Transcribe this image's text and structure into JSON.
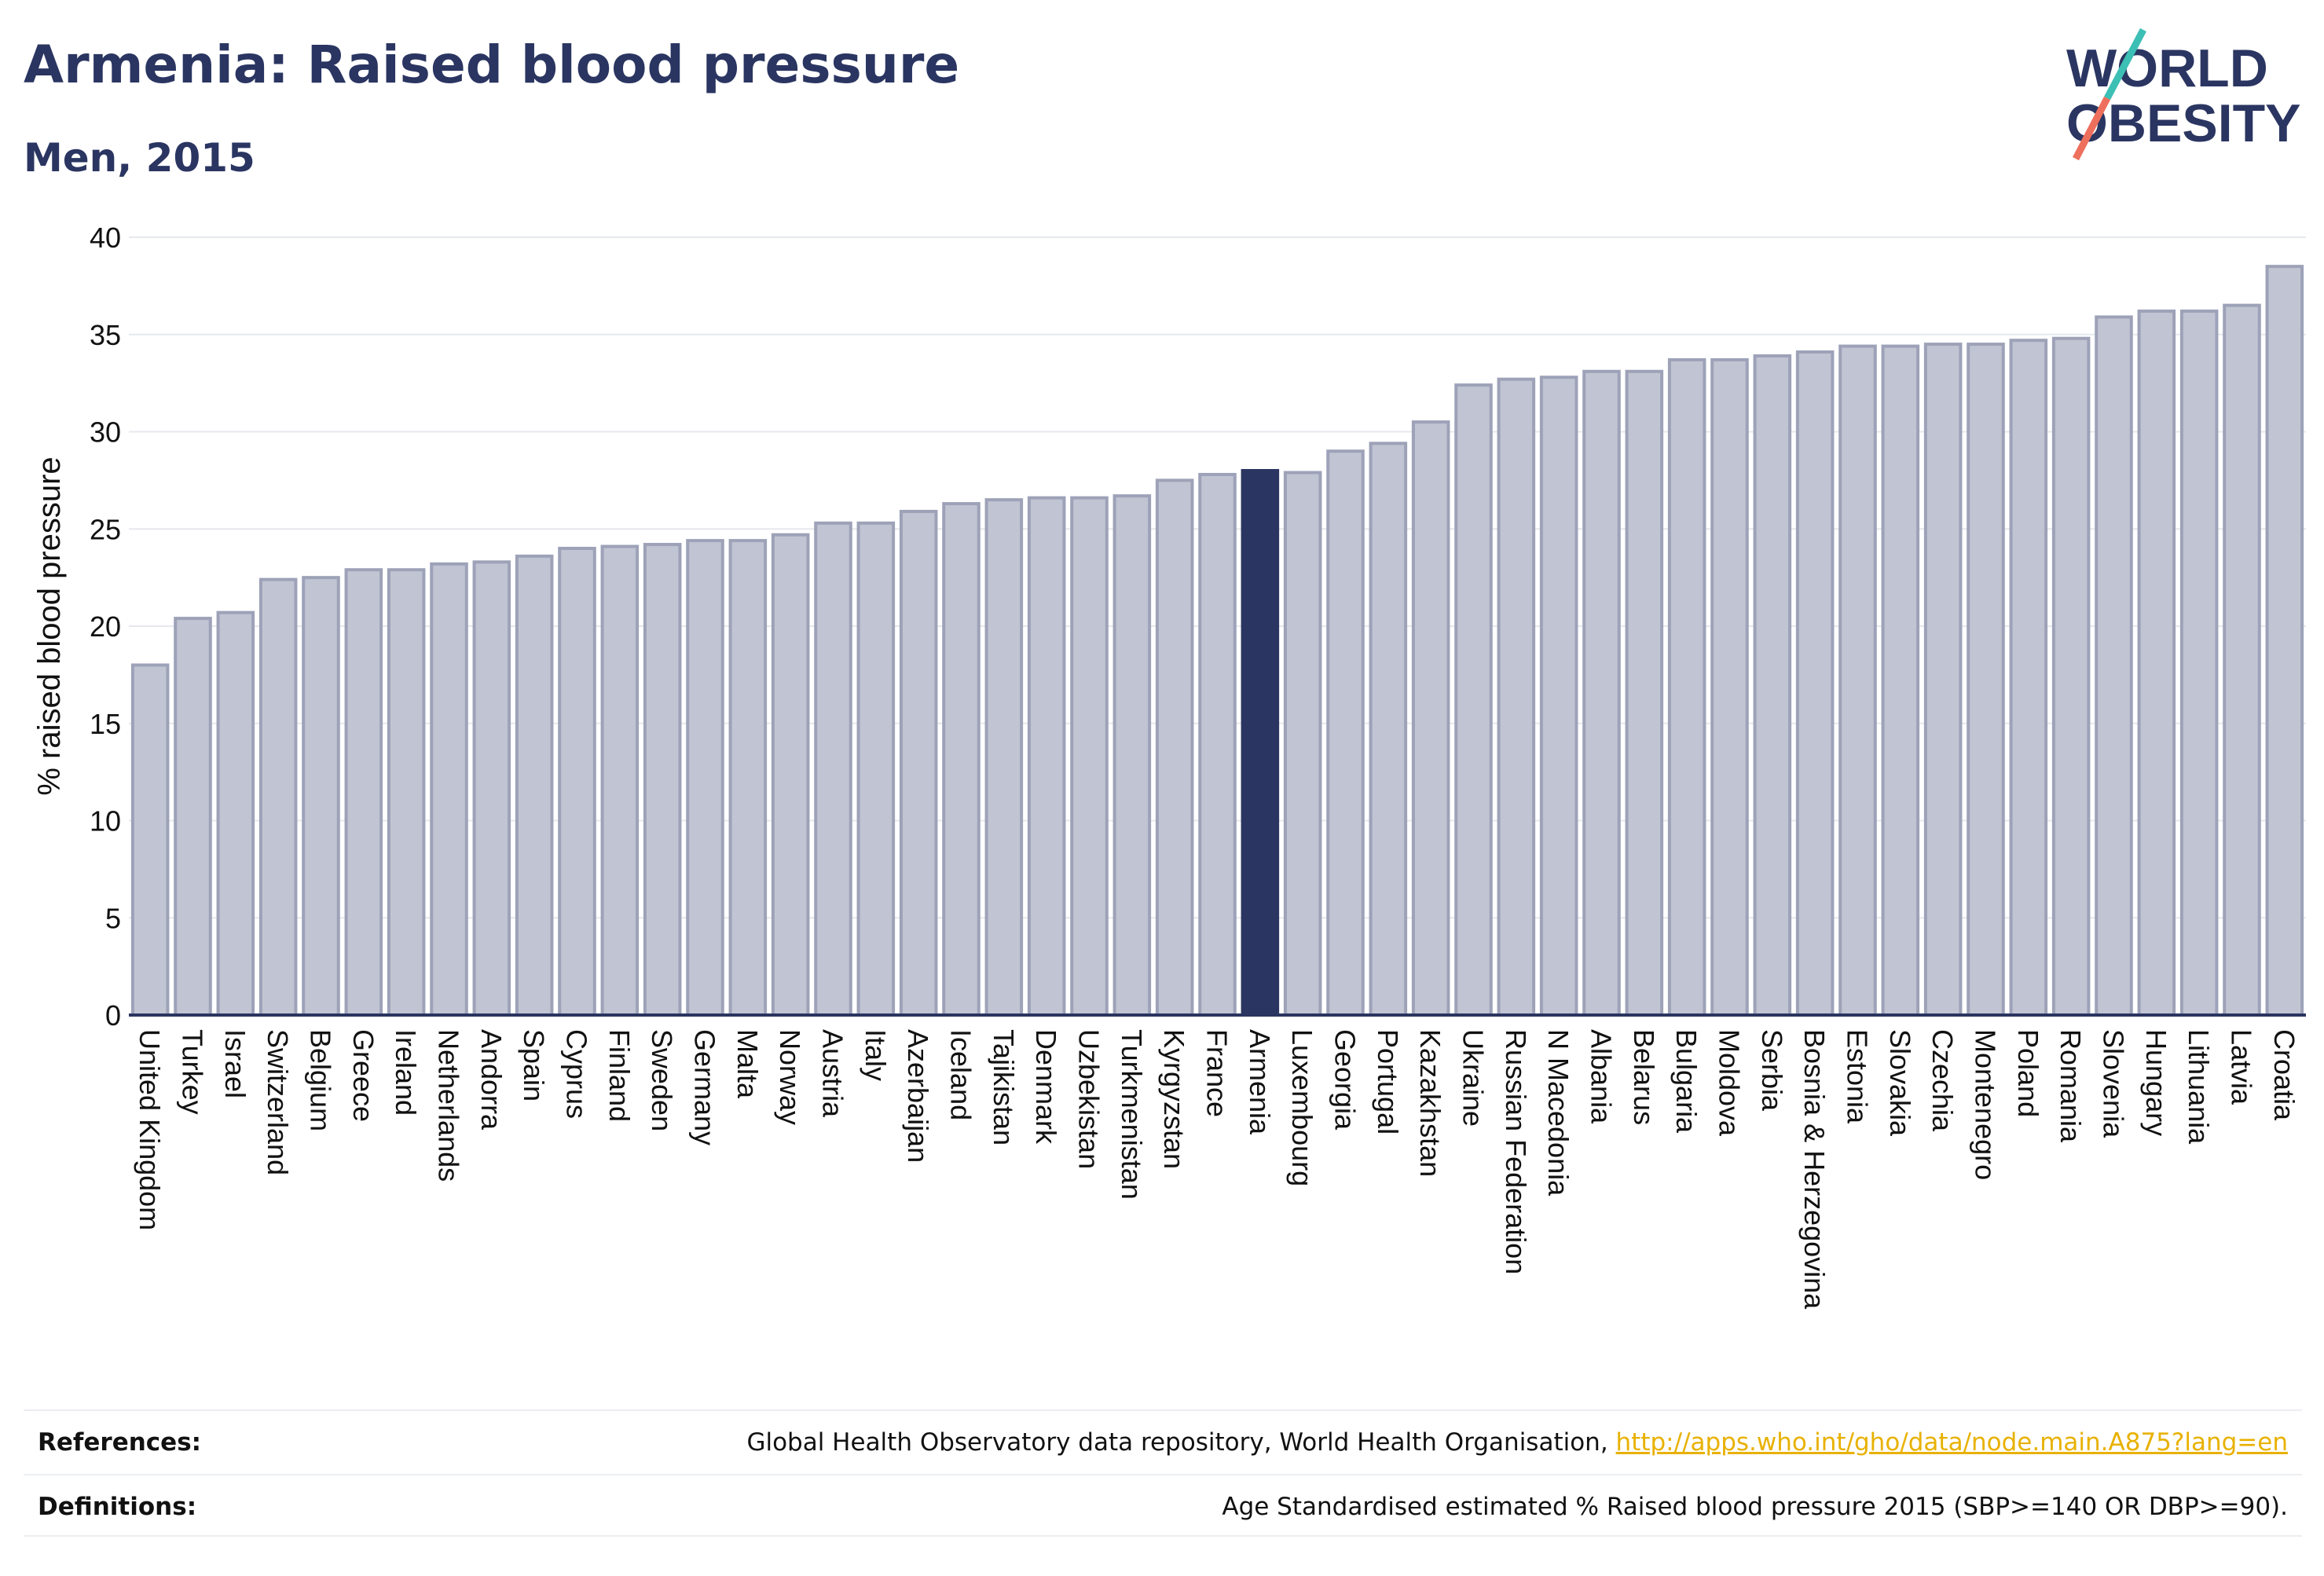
{
  "title": "Armenia: Raised blood pressure",
  "subtitle": "Men, 2015",
  "logo": {
    "line1": "WORLD",
    "line2": "OBESITY"
  },
  "colors": {
    "title": "#2a3561",
    "bar": "#c1c4d2",
    "bar_edge": "#9da2b8",
    "highlight": "#2a3561",
    "axis": "#2a3561",
    "grid": "#e6e8ee",
    "link": "#e8b100",
    "logo_teal": "#3cbfb4",
    "logo_coral": "#ee6f5c"
  },
  "chart_data": {
    "type": "bar",
    "ylabel": "% raised blood pressure",
    "xlabel": "",
    "ylim": [
      0,
      40
    ],
    "yticks": [
      0,
      5,
      10,
      15,
      20,
      25,
      30,
      35,
      40
    ],
    "grid": true,
    "highlight": "Armenia",
    "categories": [
      "United Kingdom",
      "Turkey",
      "Israel",
      "Switzerland",
      "Belgium",
      "Greece",
      "Ireland",
      "Netherlands",
      "Andorra",
      "Spain",
      "Cyprus",
      "Finland",
      "Sweden",
      "Germany",
      "Malta",
      "Norway",
      "Austria",
      "Italy",
      "Azerbaijan",
      "Iceland",
      "Tajikistan",
      "Denmark",
      "Uzbekistan",
      "Turkmenistan",
      "Kyrgyzstan",
      "France",
      "Armenia",
      "Luxembourg",
      "Georgia",
      "Portugal",
      "Kazakhstan",
      "Ukraine",
      "Russian Federation",
      "N Macedonia",
      "Albania",
      "Belarus",
      "Bulgaria",
      "Moldova",
      "Serbia",
      "Bosnia & Herzegovina",
      "Estonia",
      "Slovakia",
      "Czechia",
      "Montenegro",
      "Poland",
      "Romania",
      "Slovenia",
      "Hungary",
      "Lithuania",
      "Latvia",
      "Croatia"
    ],
    "values": [
      18.0,
      20.4,
      20.7,
      22.4,
      22.5,
      22.9,
      22.9,
      23.2,
      23.3,
      23.6,
      24.0,
      24.1,
      24.2,
      24.4,
      24.4,
      24.7,
      25.3,
      25.3,
      25.9,
      26.3,
      26.5,
      26.6,
      26.6,
      26.7,
      27.5,
      27.8,
      28.0,
      27.9,
      29.0,
      29.4,
      30.5,
      32.4,
      32.7,
      32.8,
      33.1,
      33.1,
      33.7,
      33.7,
      33.9,
      34.1,
      34.4,
      34.4,
      34.5,
      34.5,
      34.7,
      34.8,
      35.9,
      36.2,
      36.2,
      36.5,
      38.5
    ]
  },
  "footer": {
    "references_label": "References:",
    "references_text": "Global Health Observatory data repository, World Health Organisation, ",
    "references_link": "http://apps.who.int/gho/data/node.main.A875?lang=en",
    "definitions_label": "Definitions:",
    "definitions_text": "Age Standardised estimated % Raised blood pressure 2015 (SBP>=140 OR DBP>=90)."
  }
}
